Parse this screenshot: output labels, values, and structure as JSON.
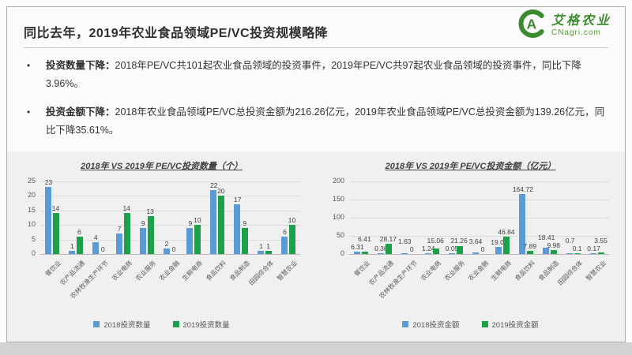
{
  "header": {
    "title": "同比去年，2019年农业食品领域PE/VC投资规模略降",
    "logo": {
      "brand": "艾格农业",
      "domain": "CNagri.com",
      "mark": "circle-C-with-A-leaf",
      "color": "#3b8b2e"
    }
  },
  "bullets": [
    {
      "marker": "•",
      "lead": "投资数量下降：",
      "text": "2018年PE/VC共101起农业食品领域的投资事件，2019年PE/VC共97起农业食品领域的投资事件，同比下降3.96%。"
    },
    {
      "marker": "•",
      "lead": "投资金额下降：",
      "text": "2018年农业食品领域PE/VC总投资金额为216.26亿元，2019年农业食品领域PE/VC总投资金额为139.26亿元，同比下降35.61%。"
    }
  ],
  "chart_data": [
    {
      "type": "bar",
      "title": "2018年 VS 2019年 PE/VC投资数量（个）",
      "categories": [
        "餐饮业",
        "农产品流通",
        "农林牧渔生产环节",
        "农业电商",
        "农业服务",
        "农业金融",
        "生鲜电商",
        "食品饮料",
        "食品制造",
        "田园综合体",
        "智慧农业"
      ],
      "series": [
        {
          "name": "2018投资数量",
          "color": "#5b9bd5",
          "values": [
            23,
            1,
            4,
            7,
            9,
            2,
            9,
            22,
            17,
            1,
            6
          ]
        },
        {
          "name": "2019投资数量",
          "color": "#1ea04a",
          "values": [
            14,
            6,
            0,
            14,
            13,
            0,
            10,
            20,
            9,
            1,
            10
          ]
        }
      ],
      "ylim": [
        0,
        25
      ],
      "ytick_step": 5,
      "grid": true,
      "legend_position": "bottom",
      "stagger_labels": false
    },
    {
      "type": "bar",
      "title": "2018年 VS 2019年 PE/VC投资金额（亿元）",
      "categories": [
        "餐饮业",
        "农产品流通",
        "农林牧渔生产环节",
        "农业电商",
        "农业服务",
        "农业金融",
        "生鲜电商",
        "食品饮料",
        "食品制造",
        "田园综合体",
        "智慧农业"
      ],
      "series": [
        {
          "name": "2018投资金额",
          "color": "#5b9bd5",
          "values": [
            6.31,
            0.36,
            1.63,
            1.24,
            0.05,
            3.64,
            19.03,
            164.72,
            18.41,
            0.7,
            0.17
          ]
        },
        {
          "name": "2019投资金额",
          "color": "#1ea04a",
          "values": [
            6.41,
            28.17,
            0,
            15.06,
            21.26,
            0,
            46.84,
            7.89,
            9.98,
            0.1,
            3.55
          ]
        }
      ],
      "ylim": [
        0,
        200
      ],
      "ytick_step": 50,
      "grid": true,
      "legend_position": "bottom",
      "stagger_labels": true
    }
  ]
}
